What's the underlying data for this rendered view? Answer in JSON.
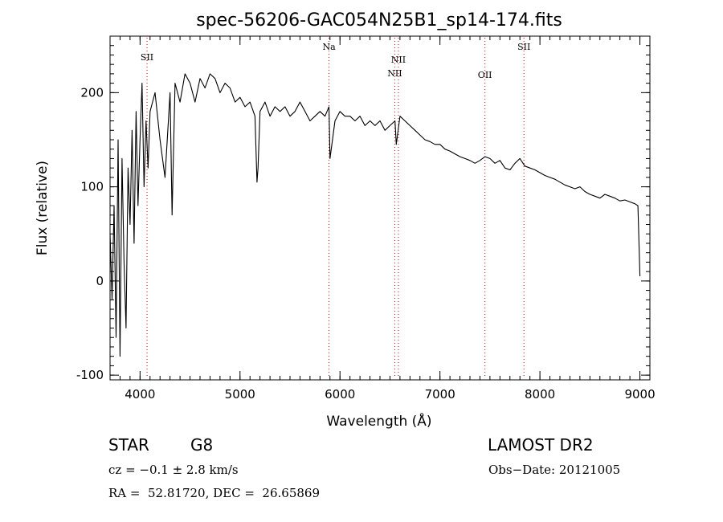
{
  "chart_data": {
    "type": "line",
    "title": "spec-56206-GAC054N25B1_sp14-174.fits",
    "xlabel": "Wavelength (Å)",
    "ylabel": "Flux (relative)",
    "xlim": [
      3700,
      9100
    ],
    "ylim": [
      -105,
      260
    ],
    "x_ticks": [
      4000,
      5000,
      6000,
      7000,
      8000,
      9000
    ],
    "y_ticks": [
      -100,
      0,
      100,
      200
    ],
    "grid": false,
    "line_color": "#000000",
    "marker_color": "#cc0000",
    "series": [
      {
        "x": [
          3700,
          3720,
          3740,
          3760,
          3780,
          3800,
          3820,
          3840,
          3860,
          3880,
          3900,
          3920,
          3940,
          3960,
          3980,
          4000,
          4020,
          4040,
          4060,
          4080,
          4100,
          4150,
          4200,
          4250,
          4300,
          4320,
          4350,
          4400,
          4450,
          4500,
          4550,
          4600,
          4650,
          4700,
          4750,
          4800,
          4850,
          4900,
          4950,
          5000,
          5050,
          5100,
          5150,
          5170,
          5180,
          5200,
          5250,
          5300,
          5350,
          5400,
          5450,
          5500,
          5550,
          5600,
          5650,
          5700,
          5750,
          5800,
          5850,
          5890,
          5900,
          5950,
          6000,
          6050,
          6100,
          6150,
          6200,
          6250,
          6300,
          6350,
          6400,
          6450,
          6500,
          6550,
          6563,
          6600,
          6650,
          6700,
          6750,
          6800,
          6850,
          6900,
          6950,
          7000,
          7050,
          7100,
          7150,
          7200,
          7250,
          7300,
          7350,
          7400,
          7450,
          7500,
          7550,
          7600,
          7650,
          7700,
          7750,
          7800,
          7850,
          7900,
          7950,
          8000,
          8050,
          8100,
          8150,
          8200,
          8250,
          8300,
          8350,
          8400,
          8450,
          8500,
          8550,
          8600,
          8650,
          8700,
          8750,
          8800,
          8850,
          8900,
          8950,
          8980,
          9000
        ],
        "y": [
          50,
          -20,
          80,
          -60,
          150,
          -80,
          130,
          20,
          -50,
          120,
          60,
          160,
          40,
          180,
          80,
          150,
          210,
          100,
          170,
          120,
          180,
          200,
          150,
          110,
          200,
          70,
          210,
          190,
          220,
          210,
          190,
          215,
          205,
          220,
          215,
          200,
          210,
          205,
          190,
          195,
          185,
          190,
          175,
          105,
          120,
          180,
          190,
          175,
          185,
          180,
          185,
          175,
          180,
          190,
          180,
          170,
          175,
          180,
          175,
          185,
          130,
          170,
          180,
          175,
          175,
          170,
          175,
          165,
          170,
          165,
          170,
          160,
          165,
          170,
          145,
          175,
          170,
          165,
          160,
          155,
          150,
          148,
          145,
          145,
          140,
          138,
          135,
          132,
          130,
          128,
          125,
          128,
          132,
          130,
          125,
          128,
          120,
          118,
          125,
          130,
          122,
          120,
          118,
          115,
          112,
          110,
          108,
          105,
          102,
          100,
          98,
          100,
          95,
          92,
          90,
          88,
          92,
          90,
          88,
          85,
          86,
          84,
          82,
          80,
          5
        ]
      }
    ],
    "line_markers": [
      {
        "label": "SII",
        "x": 4070
      },
      {
        "label": "Na",
        "x": 5890
      },
      {
        "label": "NII",
        "x": 6548
      },
      {
        "label": "NII",
        "x": 6584
      },
      {
        "label": "OII",
        "x": 7450
      },
      {
        "label": "SII",
        "x": 7840
      }
    ]
  },
  "info": {
    "object_class": "STAR",
    "subclass": "G8",
    "survey": "LAMOST DR2",
    "cz": "cz = −0.1 ± 2.8 km/s",
    "obs_date": "Obs−Date: 20121005",
    "coords": "RA =  52.81720, DEC =  26.65869"
  }
}
